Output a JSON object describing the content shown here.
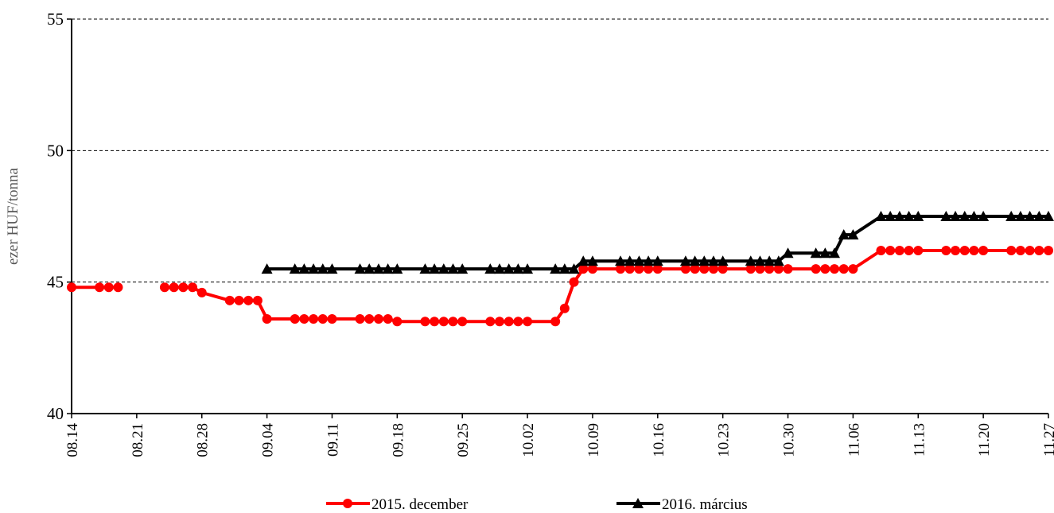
{
  "chart_data": {
    "type": "line",
    "ylabel": "ezer HUF/tonna",
    "x": [
      "08.14",
      "08.17",
      "08.18",
      "08.19",
      "08.20",
      "08.24",
      "08.25",
      "08.26",
      "08.27",
      "08.28",
      "08.31",
      "09.01",
      "09.02",
      "09.03",
      "09.04",
      "09.07",
      "09.08",
      "09.09",
      "09.10",
      "09.11",
      "09.14",
      "09.15",
      "09.16",
      "09.17",
      "09.18",
      "09.21",
      "09.22",
      "09.23",
      "09.24",
      "09.25",
      "09.28",
      "09.29",
      "09.30",
      "10.01",
      "10.02",
      "10.05",
      "10.06",
      "10.07",
      "10.08",
      "10.09",
      "10.12",
      "10.13",
      "10.14",
      "10.15",
      "10.16",
      "10.19",
      "10.20",
      "10.21",
      "10.22",
      "10.23",
      "10.26",
      "10.27",
      "10.28",
      "10.29",
      "10.30",
      "11.02",
      "11.03",
      "11.04",
      "11.05",
      "11.06",
      "11.09",
      "11.10",
      "11.11",
      "11.12",
      "11.13",
      "11.16",
      "11.17",
      "11.18",
      "11.19",
      "11.20",
      "11.23",
      "11.24",
      "11.25",
      "11.26",
      "11.27"
    ],
    "series": [
      {
        "name": "2015. december",
        "color": "#ff0000",
        "marker": "circle",
        "values": [
          44.8,
          44.8,
          44.8,
          44.8,
          null,
          44.8,
          44.8,
          44.8,
          44.8,
          44.6,
          44.3,
          44.3,
          44.3,
          44.3,
          43.6,
          43.6,
          43.6,
          43.6,
          43.6,
          43.6,
          43.6,
          43.6,
          43.6,
          43.6,
          43.5,
          43.5,
          43.5,
          43.5,
          43.5,
          43.5,
          43.5,
          43.5,
          43.5,
          43.5,
          43.5,
          43.5,
          44.0,
          45.0,
          45.5,
          45.5,
          45.5,
          45.5,
          45.5,
          45.5,
          45.5,
          45.5,
          45.5,
          45.5,
          45.5,
          45.5,
          45.5,
          45.5,
          45.5,
          45.5,
          45.5,
          45.5,
          45.5,
          45.5,
          45.5,
          45.5,
          46.2,
          46.2,
          46.2,
          46.2,
          46.2,
          46.2,
          46.2,
          46.2,
          46.2,
          46.2,
          46.2,
          46.2,
          46.2,
          46.2,
          46.2
        ]
      },
      {
        "name": "2016. március",
        "color": "#000000",
        "marker": "triangle",
        "values": [
          null,
          null,
          null,
          null,
          null,
          null,
          null,
          null,
          null,
          null,
          null,
          null,
          null,
          null,
          45.5,
          45.5,
          45.5,
          45.5,
          45.5,
          45.5,
          45.5,
          45.5,
          45.5,
          45.5,
          45.5,
          45.5,
          45.5,
          45.5,
          45.5,
          45.5,
          45.5,
          45.5,
          45.5,
          45.5,
          45.5,
          45.5,
          45.5,
          45.5,
          45.8,
          45.8,
          45.8,
          45.8,
          45.8,
          45.8,
          45.8,
          45.8,
          45.8,
          45.8,
          45.8,
          45.8,
          45.8,
          45.8,
          45.8,
          45.8,
          46.1,
          46.1,
          46.1,
          46.1,
          46.8,
          46.8,
          47.5,
          47.5,
          47.5,
          47.5,
          47.5,
          47.5,
          47.5,
          47.5,
          47.5,
          47.5,
          47.5,
          47.5,
          47.5,
          47.5,
          47.5
        ]
      }
    ],
    "xlim": [
      "08.14",
      "11.27"
    ],
    "xticks": [
      "08.14",
      "08.21",
      "08.28",
      "09.04",
      "09.11",
      "09.18",
      "09.25",
      "10.02",
      "10.09",
      "10.16",
      "10.23",
      "10.30",
      "11.06",
      "11.13",
      "11.20",
      "11.27"
    ],
    "ylim": [
      40,
      55
    ],
    "yticks": [
      40,
      45,
      50,
      55
    ],
    "grid": true,
    "legend": "bottom"
  }
}
